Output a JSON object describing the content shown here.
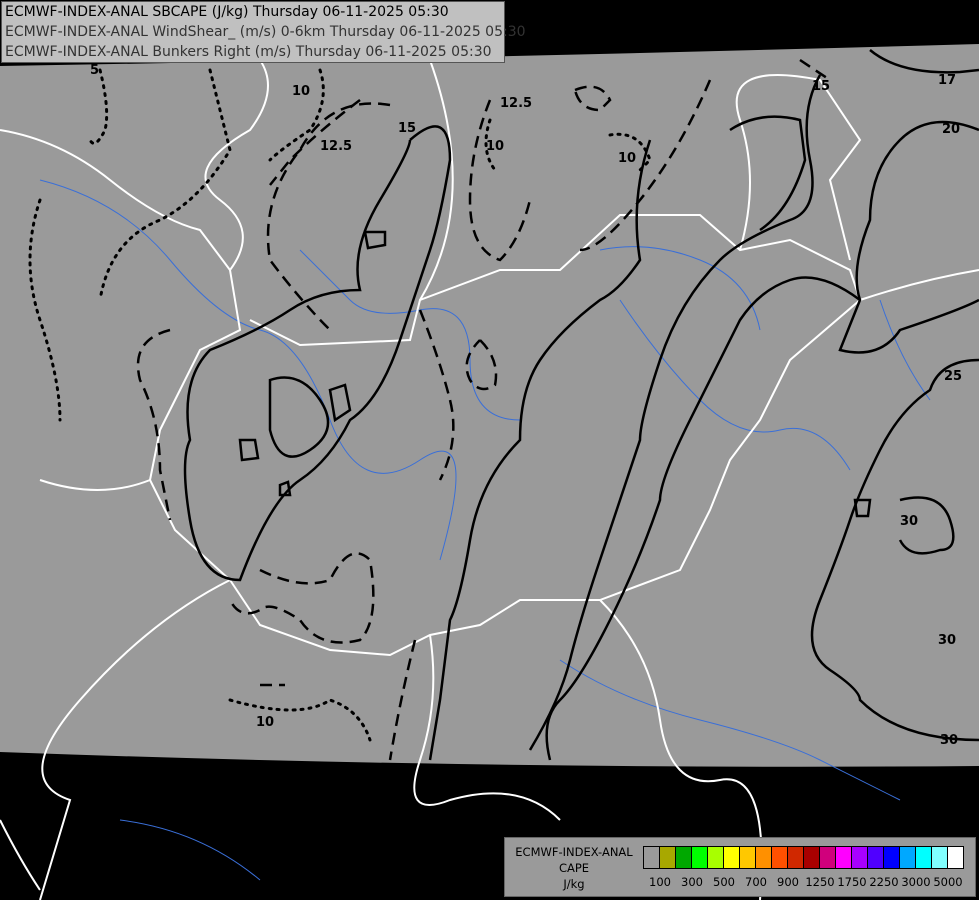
{
  "header": {
    "line1": "ECMWF-INDEX-ANAL SBCAPE (J/kg) Thursday 06-11-2025 05:30",
    "line2": "ECMWF-INDEX-ANAL WindShear_ (m/s) 0-6km Thursday 06-11-2025 05:30",
    "line3": "ECMWF-INDEX-ANAL Bunkers Right (m/s) Thursday 06-11-2025 05:30"
  },
  "legend": {
    "title1": "ECMWF-INDEX-ANAL",
    "title2": "CAPE",
    "unit": "J/kg",
    "colors": [
      "#9a9a9a",
      "#a8a800",
      "#00a800",
      "#00ff00",
      "#a8ff00",
      "#ffff00",
      "#ffc800",
      "#ff9000",
      "#ff5000",
      "#d02800",
      "#a80000",
      "#d0007c",
      "#ff00ff",
      "#a800ff",
      "#5000ff",
      "#0000ff",
      "#00a8ff",
      "#00ffff",
      "#80ffff",
      "#ffffff"
    ],
    "labels": [
      "100",
      "300",
      "500",
      "700",
      "900",
      "1250",
      "1750",
      "2250",
      "3000",
      "5000"
    ]
  },
  "map": {
    "domain_fill": "#9a9a9a",
    "border_color": "#ffffff",
    "river_color": "#3a6fd8",
    "contour_labels": [
      "5",
      "10",
      "12.5",
      "15",
      "12.5",
      "10",
      "10",
      "15",
      "17",
      "20",
      "25",
      "30",
      "30",
      "30",
      "10"
    ]
  }
}
